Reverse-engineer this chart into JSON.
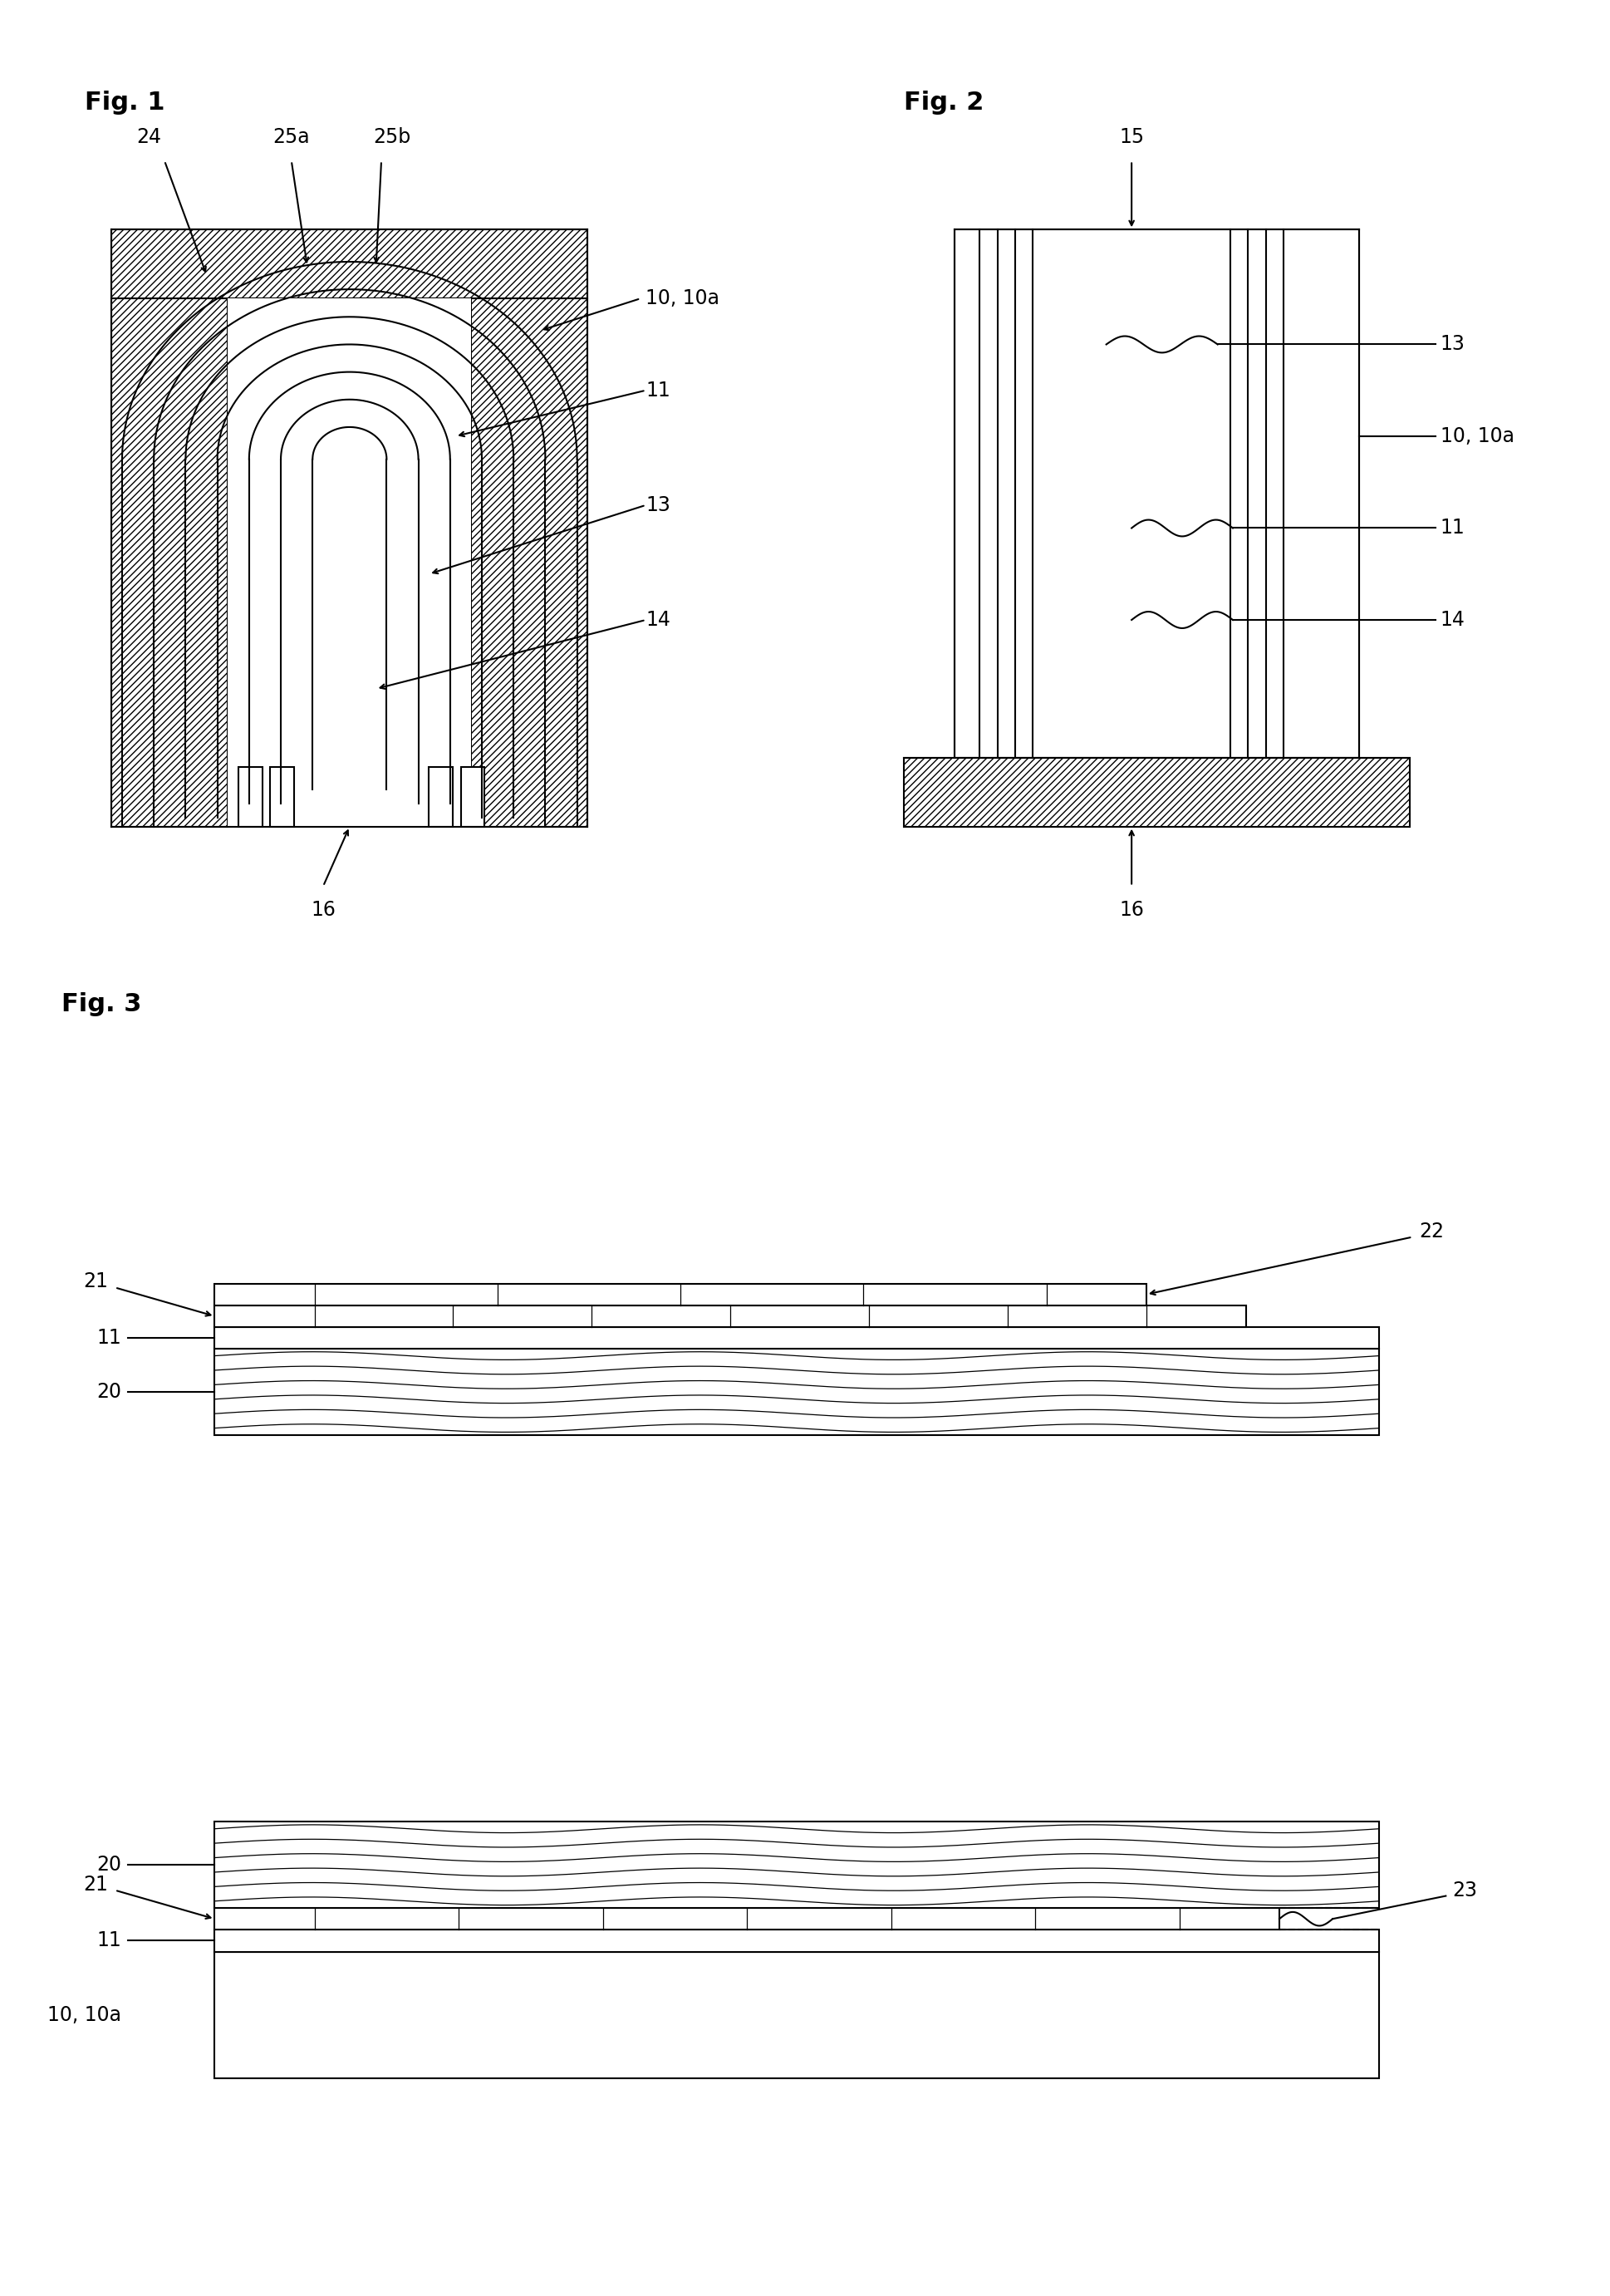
{
  "bg_color": "#ffffff",
  "line_color": "#000000",
  "fig_label_fontsize": 22,
  "label_fontsize": 17,
  "fig1_title": "Fig. 1",
  "fig2_title": "Fig. 2",
  "fig3_title": "Fig. 3"
}
